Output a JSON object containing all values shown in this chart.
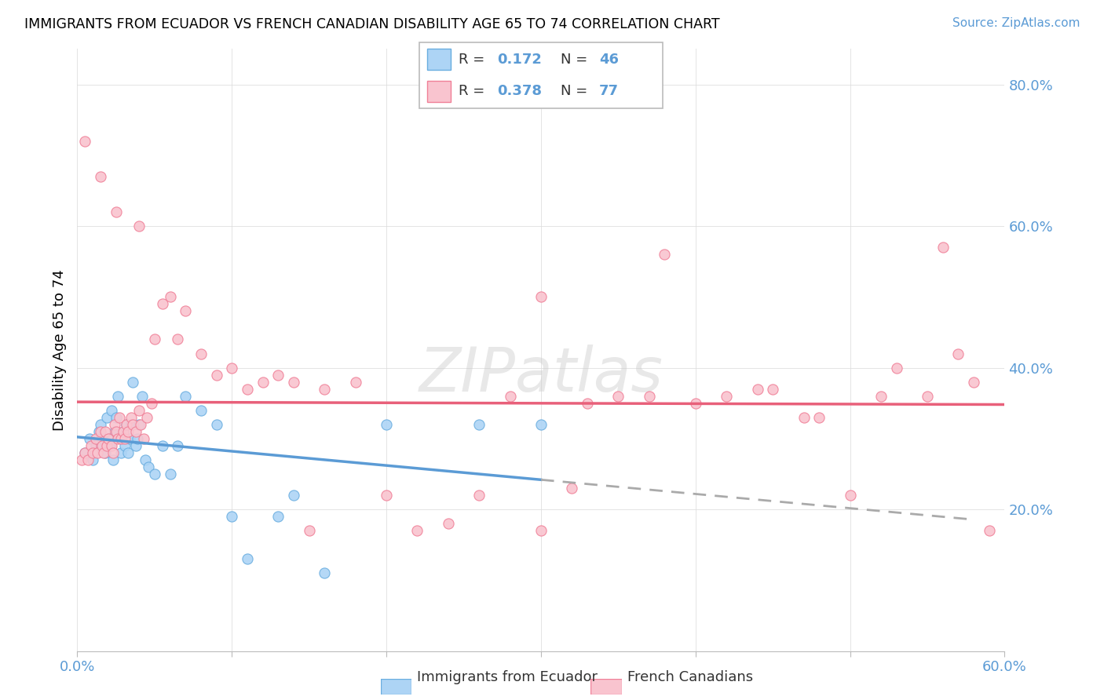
{
  "title": "IMMIGRANTS FROM ECUADOR VS FRENCH CANADIAN DISABILITY AGE 65 TO 74 CORRELATION CHART",
  "source": "Source: ZipAtlas.com",
  "ylabel": "Disability Age 65 to 74",
  "xlim": [
    0.0,
    0.6
  ],
  "ylim": [
    0.0,
    0.85
  ],
  "yticks": [
    0.2,
    0.4,
    0.6,
    0.8
  ],
  "ytick_labels": [
    "20.0%",
    "40.0%",
    "60.0%",
    "80.0%"
  ],
  "xticks": [
    0.0,
    0.1,
    0.2,
    0.3,
    0.4,
    0.5,
    0.6
  ],
  "xtick_labels": [
    "0.0%",
    "",
    "",
    "",
    "",
    "",
    "60.0%"
  ],
  "legend_r1": "R = ",
  "legend_v1": "0.172",
  "legend_n1_label": "N = ",
  "legend_n1_val": "46",
  "legend_r2": "R = ",
  "legend_v2": "0.378",
  "legend_n2_label": "N = ",
  "legend_n2_val": "77",
  "color_blue_fill": "#ADD4F5",
  "color_blue_edge": "#6AAEE0",
  "color_blue_line": "#5B9BD5",
  "color_pink_fill": "#F9C4CF",
  "color_pink_edge": "#F08098",
  "color_pink_line": "#E8607A",
  "color_dash": "#AAAAAA",
  "color_axis_label": "#5B9BD5",
  "blue_scatter_x": [
    0.005,
    0.008,
    0.01,
    0.012,
    0.014,
    0.015,
    0.016,
    0.018,
    0.019,
    0.02,
    0.021,
    0.022,
    0.023,
    0.024,
    0.025,
    0.026,
    0.028,
    0.029,
    0.03,
    0.031,
    0.032,
    0.033,
    0.034,
    0.035,
    0.036,
    0.038,
    0.039,
    0.04,
    0.042,
    0.044,
    0.046,
    0.05,
    0.055,
    0.06,
    0.065,
    0.07,
    0.08,
    0.09,
    0.1,
    0.11,
    0.13,
    0.14,
    0.16,
    0.2,
    0.26,
    0.3
  ],
  "blue_scatter_y": [
    0.28,
    0.3,
    0.27,
    0.29,
    0.31,
    0.32,
    0.3,
    0.28,
    0.33,
    0.3,
    0.29,
    0.34,
    0.27,
    0.31,
    0.33,
    0.36,
    0.28,
    0.3,
    0.31,
    0.29,
    0.32,
    0.28,
    0.3,
    0.32,
    0.38,
    0.29,
    0.3,
    0.32,
    0.36,
    0.27,
    0.26,
    0.25,
    0.29,
    0.25,
    0.29,
    0.36,
    0.34,
    0.32,
    0.19,
    0.13,
    0.19,
    0.22,
    0.11,
    0.32,
    0.32,
    0.32
  ],
  "pink_scatter_x": [
    0.003,
    0.005,
    0.007,
    0.009,
    0.01,
    0.012,
    0.013,
    0.015,
    0.016,
    0.017,
    0.018,
    0.019,
    0.02,
    0.022,
    0.023,
    0.024,
    0.025,
    0.026,
    0.027,
    0.028,
    0.03,
    0.031,
    0.032,
    0.033,
    0.035,
    0.036,
    0.038,
    0.04,
    0.041,
    0.043,
    0.045,
    0.048,
    0.05,
    0.055,
    0.06,
    0.065,
    0.07,
    0.08,
    0.09,
    0.1,
    0.11,
    0.12,
    0.13,
    0.14,
    0.15,
    0.16,
    0.18,
    0.2,
    0.22,
    0.24,
    0.26,
    0.28,
    0.3,
    0.32,
    0.33,
    0.35,
    0.37,
    0.38,
    0.4,
    0.42,
    0.44,
    0.45,
    0.47,
    0.48,
    0.5,
    0.52,
    0.53,
    0.55,
    0.56,
    0.57,
    0.58,
    0.59,
    0.005,
    0.015,
    0.025,
    0.04,
    0.3
  ],
  "pink_scatter_y": [
    0.27,
    0.28,
    0.27,
    0.29,
    0.28,
    0.3,
    0.28,
    0.31,
    0.29,
    0.28,
    0.31,
    0.29,
    0.3,
    0.29,
    0.28,
    0.32,
    0.31,
    0.3,
    0.33,
    0.3,
    0.31,
    0.3,
    0.32,
    0.31,
    0.33,
    0.32,
    0.31,
    0.34,
    0.32,
    0.3,
    0.33,
    0.35,
    0.44,
    0.49,
    0.5,
    0.44,
    0.48,
    0.42,
    0.39,
    0.4,
    0.37,
    0.38,
    0.39,
    0.38,
    0.17,
    0.37,
    0.38,
    0.22,
    0.17,
    0.18,
    0.22,
    0.36,
    0.17,
    0.23,
    0.35,
    0.36,
    0.36,
    0.56,
    0.35,
    0.36,
    0.37,
    0.37,
    0.33,
    0.33,
    0.22,
    0.36,
    0.4,
    0.36,
    0.57,
    0.42,
    0.38,
    0.17,
    0.72,
    0.67,
    0.62,
    0.6,
    0.5
  ]
}
